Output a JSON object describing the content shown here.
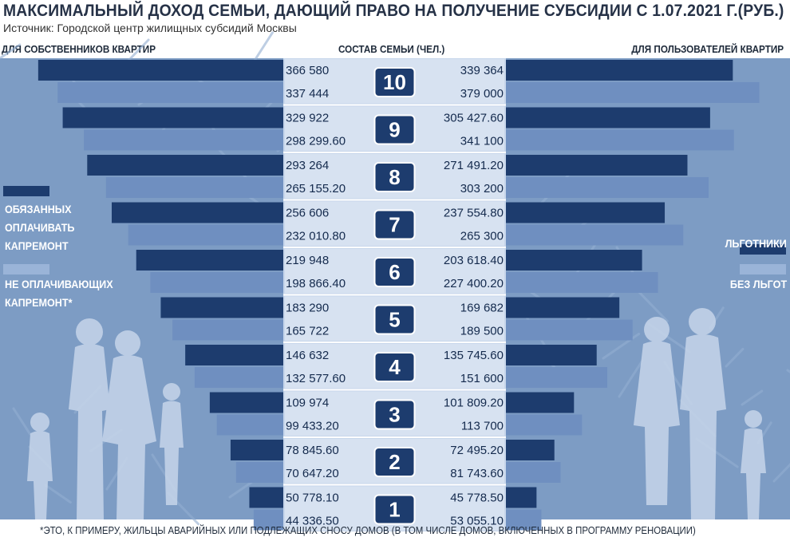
{
  "title": "МАКСИМАЛЬНЫЙ ДОХОД СЕМЬИ, ДАЮЩИЙ ПРАВО НА ПОЛУЧЕНИЕ СУБСИДИИ С 1.07.2021 Г.(РУБ.)",
  "source": "Источник: Городской центр жилищных субсидий Москвы",
  "headers": {
    "left": "ДЛЯ СОБСТВЕННИКОВ КВАРТИР",
    "center": "СОСТАВ СЕМЬИ (ЧЕЛ.)",
    "right": "ДЛЯ ПОЛЬЗОВАТЕЛЕЙ КВАРТИР"
  },
  "legend": {
    "left_dark": "ОБЯЗАННЫХ ОПЛАЧИВАТЬ КАПРЕМОНТ",
    "left_light": "НЕ ОПЛАЧИВАЮЩИХ КАПРЕМОНТ*",
    "right_dark": "ЛЬГОТНИКИ",
    "right_light": "БЕЗ ЛЬГОТ"
  },
  "footnote": "*ЭТО, К ПРИМЕРУ, ЖИЛЬЦЫ АВАРИЙНЫХ ИЛИ ПОДЛЕЖАЩИХ СНОСУ ДОМОВ (В ТОМ ЧИСЛЕ ДОМОВ, ВКЛЮЧЕННЫХ В ПРОГРАММУ РЕНОВАЦИИ)",
  "colors": {
    "dark_bar": "#1d3c6e",
    "light_bar": "#6f8fc0",
    "panel": "#7d9cc4",
    "label_bg": "#ffffff",
    "badge": "#1d3c6e"
  },
  "chart_data": {
    "type": "bar",
    "orientation": "horizontal-butterfly",
    "categories": [
      "10",
      "9",
      "8",
      "7",
      "6",
      "5",
      "4",
      "3",
      "2",
      "1"
    ],
    "series": [
      {
        "name": "ОБЯЗАННЫХ ОПЛАЧИВАТЬ КАПРЕМОНТ",
        "side": "left",
        "values": [
          366580,
          329922,
          293264,
          256606,
          219948,
          183290,
          146632,
          109974,
          78845.6,
          50778.1
        ],
        "labels": [
          "366 580",
          "329 922",
          "293 264",
          "256 606",
          "219 948",
          "183 290",
          "146 632",
          "109 974",
          "78 845.60",
          "50 778.10"
        ]
      },
      {
        "name": "НЕ ОПЛАЧИВАЮЩИХ КАПРЕМОНТ*",
        "side": "left",
        "values": [
          337444,
          298299.6,
          265155.2,
          232010.8,
          198866.4,
          165722,
          132577.6,
          99433.2,
          70647.2,
          44336.5
        ],
        "labels": [
          "337 444",
          "298 299.60",
          "265 155.20",
          "232 010.80",
          "198 866.40",
          "165 722",
          "132 577.60",
          "99 433.20",
          "70 647.20",
          "44 336.50"
        ]
      },
      {
        "name": "ЛЬГОТНИКИ",
        "side": "right",
        "values": [
          339364,
          305427.6,
          271491.2,
          237554.8,
          203618.4,
          169682,
          135745.6,
          101809.2,
          72495.2,
          45778.5
        ],
        "labels": [
          "339 364",
          "305 427.60",
          "271 491.20",
          "237 554.80",
          "203 618.40",
          "169 682",
          "135 745.60",
          "101 809.20",
          "72 495.20",
          "45 778.50"
        ]
      },
      {
        "name": "БЕЗ ЛЬГОТ",
        "side": "right",
        "values": [
          379000,
          341100,
          303200,
          265300,
          227400.2,
          189500,
          151600,
          113700,
          81743.6,
          53055.1
        ],
        "labels": [
          "379 000",
          "341 100",
          "303 200",
          "265 300",
          "227 400.20",
          "189 500",
          "151 600",
          "113 700",
          "81 743.60",
          "53 055.10"
        ]
      }
    ],
    "xlabel": "",
    "ylabel": "СОСТАВ СЕМЬИ (ЧЕЛ.)",
    "grid": false,
    "legend_position": "left and right sides"
  }
}
